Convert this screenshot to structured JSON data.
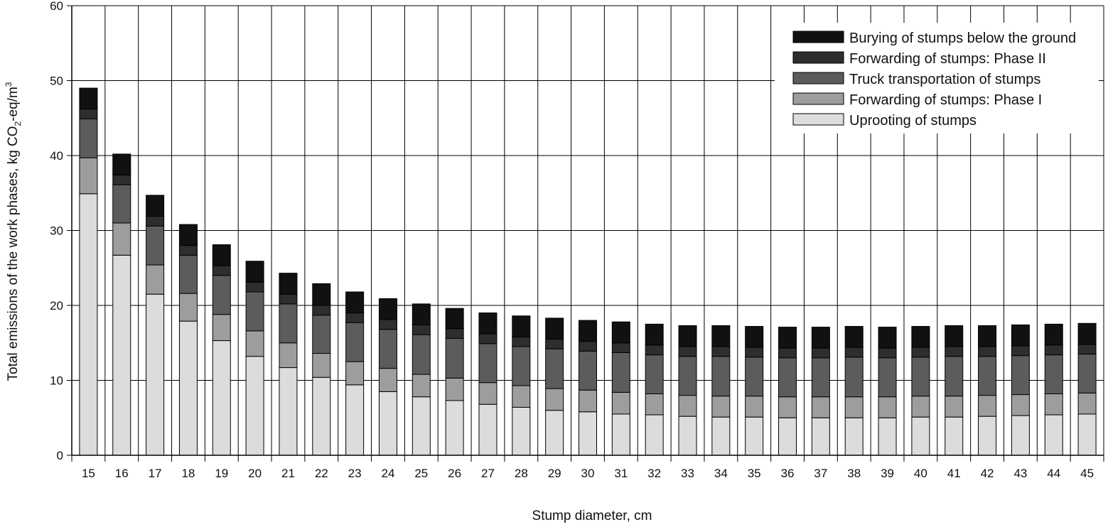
{
  "chart_data": {
    "type": "bar",
    "stacked": true,
    "title": "",
    "xlabel": "Stump diameter, cm",
    "ylabel_parts": [
      "Total emissions of the work phases, kg CO",
      "2",
      "-eq/m",
      "3"
    ],
    "ylim": [
      0,
      60
    ],
    "yticks": [
      0,
      10,
      20,
      30,
      40,
      50,
      60
    ],
    "grid": "both",
    "legend_position": "top-right",
    "categories": [
      "15",
      "16",
      "17",
      "18",
      "19",
      "20",
      "21",
      "22",
      "23",
      "24",
      "25",
      "26",
      "27",
      "28",
      "29",
      "30",
      "31",
      "32",
      "33",
      "34",
      "35",
      "36",
      "37",
      "38",
      "39",
      "40",
      "41",
      "42",
      "43",
      "44",
      "45"
    ],
    "series": [
      {
        "name": "Uprooting of stumps",
        "color": "#dcdcdc",
        "values": [
          34.9,
          26.7,
          21.5,
          17.9,
          15.3,
          13.2,
          11.7,
          10.4,
          9.4,
          8.5,
          7.8,
          7.3,
          6.8,
          6.4,
          6.0,
          5.8,
          5.5,
          5.4,
          5.2,
          5.1,
          5.1,
          5.0,
          5.0,
          5.0,
          5.0,
          5.1,
          5.1,
          5.2,
          5.3,
          5.4,
          5.5
        ]
      },
      {
        "name": "Forwarding of stumps: Phase I",
        "color": "#9d9d9d",
        "values": [
          4.8,
          4.3,
          3.9,
          3.7,
          3.5,
          3.4,
          3.3,
          3.2,
          3.1,
          3.1,
          3.0,
          3.0,
          2.9,
          2.9,
          2.9,
          2.9,
          2.9,
          2.8,
          2.8,
          2.8,
          2.8,
          2.8,
          2.8,
          2.8,
          2.8,
          2.8,
          2.8,
          2.8,
          2.8,
          2.8,
          2.8
        ]
      },
      {
        "name": "Truck transportation of stumps",
        "color": "#5c5c5c",
        "values": [
          5.2,
          5.1,
          5.2,
          5.1,
          5.2,
          5.2,
          5.2,
          5.1,
          5.2,
          5.2,
          5.3,
          5.3,
          5.2,
          5.2,
          5.3,
          5.2,
          5.3,
          5.2,
          5.2,
          5.3,
          5.2,
          5.2,
          5.2,
          5.3,
          5.2,
          5.2,
          5.3,
          5.2,
          5.2,
          5.2,
          5.2
        ]
      },
      {
        "name": "Forwarding of stumps: Phase II",
        "color": "#2e2e2e",
        "values": [
          1.3,
          1.3,
          1.3,
          1.3,
          1.3,
          1.3,
          1.3,
          1.3,
          1.3,
          1.3,
          1.3,
          1.3,
          1.3,
          1.3,
          1.3,
          1.3,
          1.3,
          1.3,
          1.3,
          1.3,
          1.3,
          1.3,
          1.3,
          1.3,
          1.3,
          1.3,
          1.3,
          1.3,
          1.3,
          1.3,
          1.3
        ]
      },
      {
        "name": "Burying of stumps below the ground",
        "color": "#111111",
        "values": [
          2.8,
          2.8,
          2.8,
          2.8,
          2.8,
          2.8,
          2.8,
          2.9,
          2.8,
          2.8,
          2.8,
          2.7,
          2.8,
          2.8,
          2.8,
          2.8,
          2.8,
          2.8,
          2.8,
          2.8,
          2.8,
          2.8,
          2.8,
          2.8,
          2.8,
          2.8,
          2.8,
          2.8,
          2.8,
          2.8,
          2.8
        ]
      }
    ]
  }
}
